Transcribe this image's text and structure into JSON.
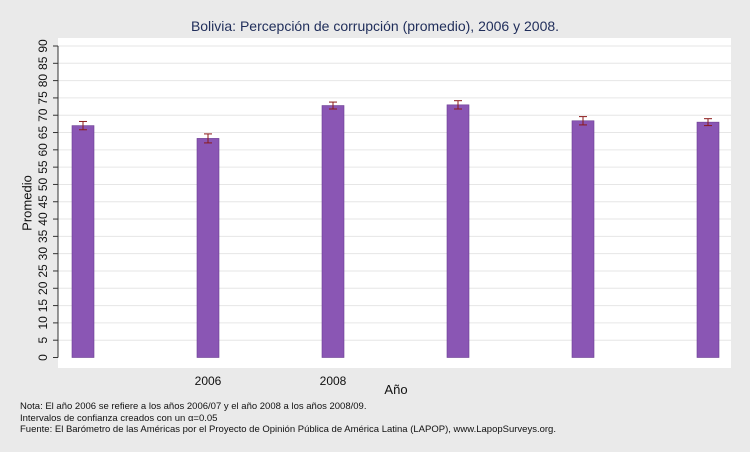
{
  "chart_data": {
    "type": "bar",
    "title": "Bolivia: Percepción de corrupción (promedio), 2006 y 2008.",
    "xlabel": "Año",
    "ylabel": "Promedio",
    "ylim": [
      0,
      90
    ],
    "yticks": [
      0,
      5,
      10,
      15,
      20,
      25,
      30,
      35,
      40,
      45,
      50,
      55,
      60,
      65,
      70,
      75,
      80,
      85,
      90
    ],
    "categories": [
      "",
      "2006",
      "2008",
      "",
      "",
      ""
    ],
    "values": [
      67.0,
      63.3,
      72.8,
      73.0,
      68.4,
      68.0
    ],
    "error_low": [
      65.8,
      62.0,
      71.8,
      71.8,
      67.2,
      67.0
    ],
    "error_high": [
      68.2,
      64.6,
      73.8,
      74.2,
      69.6,
      69.0
    ],
    "bar_color": "#8a56b4",
    "error_color": "#8b1a1a",
    "grid": true
  },
  "footnotes": {
    "line1": "Nota: El año 2006 se refiere a los años 2006/07 y el año 2008 a los años 2008/09.",
    "line2": "Intervalos de confianza creados con un α=0.05",
    "line3": "Fuente: El Barómetro de las Américas por el Proyecto de Opinión Pública de América Latina (LAPOP), www.LapopSurveys.org."
  }
}
